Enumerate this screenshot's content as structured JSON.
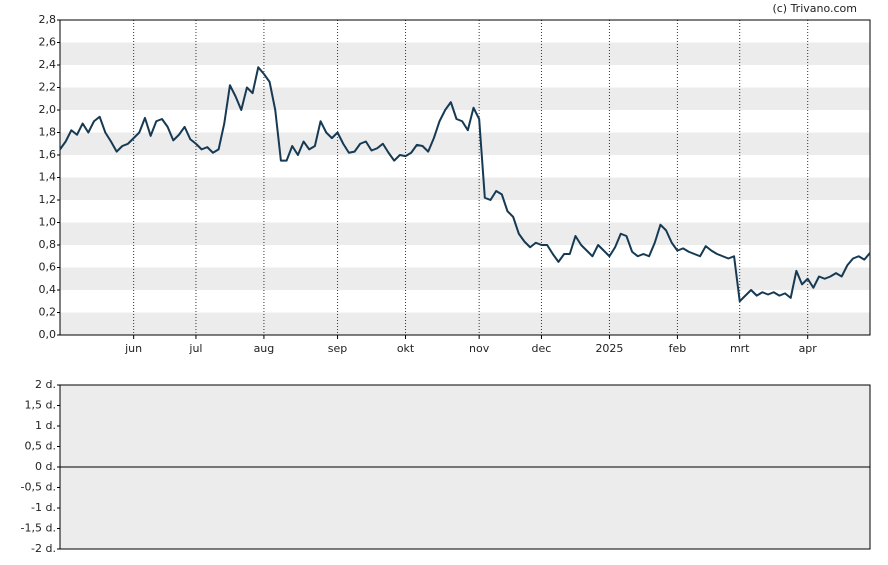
{
  "credit": "(c) Trivano.com",
  "chart_data": [
    {
      "type": "line",
      "xlim": [
        0,
        143
      ],
      "xticks": [
        {
          "value": 13,
          "label": "jun"
        },
        {
          "value": 24,
          "label": "jul"
        },
        {
          "value": 36,
          "label": "aug"
        },
        {
          "value": 49,
          "label": "sep"
        },
        {
          "value": 61,
          "label": "okt"
        },
        {
          "value": 74,
          "label": "nov"
        },
        {
          "value": 85,
          "label": "dec"
        },
        {
          "value": 97,
          "label": "2025"
        },
        {
          "value": 109,
          "label": "feb"
        },
        {
          "value": 120,
          "label": "mrt"
        },
        {
          "value": 132,
          "label": "apr"
        }
      ],
      "ylim": [
        0,
        2.8
      ],
      "yticks": [
        {
          "value": 0,
          "label": "0,0"
        },
        {
          "value": 0.2,
          "label": "0,2"
        },
        {
          "value": 0.4,
          "label": "0,4"
        },
        {
          "value": 0.6,
          "label": "0,6"
        },
        {
          "value": 0.8,
          "label": "0,8"
        },
        {
          "value": 1.0,
          "label": "1,0"
        },
        {
          "value": 1.2,
          "label": "1,2"
        },
        {
          "value": 1.4,
          "label": "1,4"
        },
        {
          "value": 1.6,
          "label": "1,6"
        },
        {
          "value": 1.8,
          "label": "1,8"
        },
        {
          "value": 2.0,
          "label": "2,0"
        },
        {
          "value": 2.2,
          "label": "2,2"
        },
        {
          "value": 2.4,
          "label": "2,4"
        },
        {
          "value": 2.6,
          "label": "2,6"
        },
        {
          "value": 2.8,
          "label": "2,8"
        }
      ],
      "grid": "bands",
      "series": [
        {
          "color": "#163a54",
          "values": [
            1.65,
            1.72,
            1.82,
            1.78,
            1.88,
            1.8,
            1.9,
            1.94,
            1.8,
            1.72,
            1.63,
            1.68,
            1.7,
            1.75,
            1.8,
            1.93,
            1.77,
            1.9,
            1.92,
            1.85,
            1.73,
            1.78,
            1.85,
            1.74,
            1.7,
            1.65,
            1.67,
            1.62,
            1.65,
            1.88,
            2.22,
            2.12,
            2.0,
            2.2,
            2.15,
            2.38,
            2.32,
            2.25,
            2.0,
            1.55,
            1.55,
            1.68,
            1.6,
            1.72,
            1.65,
            1.68,
            1.9,
            1.8,
            1.75,
            1.8,
            1.7,
            1.62,
            1.63,
            1.7,
            1.72,
            1.64,
            1.66,
            1.7,
            1.62,
            1.55,
            1.6,
            1.59,
            1.62,
            1.69,
            1.68,
            1.63,
            1.75,
            1.9,
            2.0,
            2.07,
            1.92,
            1.9,
            1.82,
            2.02,
            1.92,
            1.22,
            1.2,
            1.28,
            1.25,
            1.1,
            1.05,
            0.9,
            0.83,
            0.78,
            0.82,
            0.8,
            0.8,
            0.72,
            0.65,
            0.72,
            0.72,
            0.88,
            0.8,
            0.75,
            0.7,
            0.8,
            0.75,
            0.7,
            0.78,
            0.9,
            0.88,
            0.74,
            0.7,
            0.72,
            0.7,
            0.82,
            0.98,
            0.93,
            0.82,
            0.75,
            0.77,
            0.74,
            0.72,
            0.7,
            0.79,
            0.75,
            0.72,
            0.7,
            0.68,
            0.7,
            0.3,
            0.35,
            0.4,
            0.35,
            0.38,
            0.36,
            0.38,
            0.35,
            0.37,
            0.33,
            0.57,
            0.45,
            0.5,
            0.42,
            0.52,
            0.5,
            0.52,
            0.55,
            0.52,
            0.62,
            0.68,
            0.7,
            0.67,
            0.73
          ]
        }
      ]
    },
    {
      "type": "line",
      "ylim": [
        -2,
        2
      ],
      "yticks": [
        {
          "value": -2,
          "label": "-2 d."
        },
        {
          "value": -1.5,
          "label": "-1,5 d."
        },
        {
          "value": -1,
          "label": "-1 d."
        },
        {
          "value": -0.5,
          "label": "-0,5 d."
        },
        {
          "value": 0,
          "label": "0 d."
        },
        {
          "value": 0.5,
          "label": "0,5 d."
        },
        {
          "value": 1,
          "label": "1 d."
        },
        {
          "value": 1.5,
          "label": "1,5 d."
        },
        {
          "value": 2,
          "label": "2 d."
        }
      ],
      "grid": "bands",
      "series": []
    }
  ]
}
